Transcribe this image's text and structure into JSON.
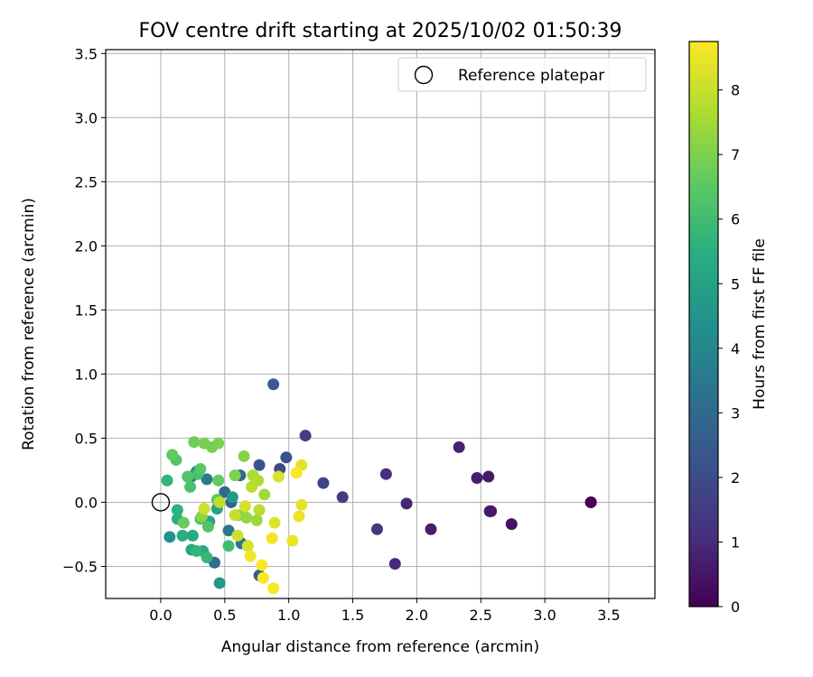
{
  "chart_data": {
    "type": "scatter",
    "title": "FOV centre drift starting at 2025/10/02 01:50:39",
    "xlabel": "Angular distance from reference (arcmin)",
    "ylabel": "Rotation from reference (arcmin)",
    "xlim": [
      -0.43,
      3.86
    ],
    "ylim": [
      -0.75,
      3.53
    ],
    "xticks": [
      0.0,
      0.5,
      1.0,
      1.5,
      2.0,
      2.5,
      3.0,
      3.5
    ],
    "xtick_labels": [
      "0.0",
      "0.5",
      "1.0",
      "1.5",
      "2.0",
      "2.5",
      "3.0",
      "3.5"
    ],
    "yticks": [
      -0.5,
      0.0,
      0.5,
      1.0,
      1.5,
      2.0,
      2.5,
      3.0,
      3.5
    ],
    "ytick_labels": [
      "−0.5",
      "0.0",
      "0.5",
      "1.0",
      "1.5",
      "2.0",
      "2.5",
      "3.0",
      "3.5"
    ],
    "grid": true,
    "legend": {
      "position": "top-right",
      "entries": [
        "Reference platepar"
      ]
    },
    "reference_point": {
      "x": 0.0,
      "y": 0.0
    },
    "colorbar": {
      "label": "Hours from first FF file",
      "colormap": "viridis",
      "range": [
        0,
        8.75
      ],
      "ticks": [
        0,
        1,
        2,
        3,
        4,
        5,
        6,
        7,
        8
      ],
      "tick_labels": [
        "0",
        "1",
        "2",
        "3",
        "4",
        "5",
        "6",
        "7",
        "8"
      ]
    },
    "points": [
      {
        "x": 3.36,
        "y": 0.0,
        "hours": 0.0
      },
      {
        "x": 3.36,
        "y": 0.0,
        "hours": 0.1
      },
      {
        "x": 2.74,
        "y": -0.17,
        "hours": 0.4
      },
      {
        "x": 2.58,
        "y": -0.07,
        "hours": 0.5
      },
      {
        "x": 2.57,
        "y": -0.07,
        "hours": 0.6
      },
      {
        "x": 2.56,
        "y": 0.2,
        "hours": 0.6
      },
      {
        "x": 2.47,
        "y": 0.19,
        "hours": 0.7
      },
      {
        "x": 2.33,
        "y": 0.43,
        "hours": 0.8
      },
      {
        "x": 2.11,
        "y": -0.21,
        "hours": 0.7
      },
      {
        "x": 1.92,
        "y": -0.01,
        "hours": 0.9
      },
      {
        "x": 1.83,
        "y": -0.48,
        "hours": 1.0
      },
      {
        "x": 1.76,
        "y": 0.22,
        "hours": 1.1
      },
      {
        "x": 1.69,
        "y": -0.21,
        "hours": 1.3
      },
      {
        "x": 1.42,
        "y": 0.04,
        "hours": 1.5
      },
      {
        "x": 1.27,
        "y": 0.15,
        "hours": 1.7
      },
      {
        "x": 1.13,
        "y": 0.52,
        "hours": 1.6
      },
      {
        "x": 0.98,
        "y": 0.35,
        "hours": 2.2
      },
      {
        "x": 0.93,
        "y": 0.26,
        "hours": 1.9
      },
      {
        "x": 0.88,
        "y": 0.92,
        "hours": 2.5
      },
      {
        "x": 0.77,
        "y": 0.29,
        "hours": 2.3
      },
      {
        "x": 0.77,
        "y": -0.57,
        "hours": 2.6
      },
      {
        "x": 0.62,
        "y": 0.21,
        "hours": 2.9
      },
      {
        "x": 0.55,
        "y": 0.0,
        "hours": 2.8
      },
      {
        "x": 0.5,
        "y": 0.08,
        "hours": 3.0
      },
      {
        "x": 0.42,
        "y": -0.47,
        "hours": 3.1
      },
      {
        "x": 0.63,
        "y": -0.32,
        "hours": 3.3
      },
      {
        "x": 0.53,
        "y": -0.22,
        "hours": 3.5
      },
      {
        "x": 0.36,
        "y": 0.18,
        "hours": 3.6
      },
      {
        "x": 0.28,
        "y": 0.24,
        "hours": 3.8
      },
      {
        "x": 0.24,
        "y": 0.2,
        "hours": 4.0
      },
      {
        "x": 0.07,
        "y": -0.27,
        "hours": 4.4
      },
      {
        "x": 0.46,
        "y": -0.63,
        "hours": 4.6
      },
      {
        "x": 0.56,
        "y": 0.04,
        "hours": 4.7
      },
      {
        "x": 0.44,
        "y": -0.05,
        "hours": 5.0
      },
      {
        "x": 0.38,
        "y": -0.15,
        "hours": 5.1
      },
      {
        "x": 0.33,
        "y": -0.38,
        "hours": 5.2
      },
      {
        "x": 0.24,
        "y": -0.37,
        "hours": 5.2
      },
      {
        "x": 0.25,
        "y": -0.26,
        "hours": 5.3
      },
      {
        "x": 0.17,
        "y": -0.26,
        "hours": 5.4
      },
      {
        "x": 0.13,
        "y": -0.13,
        "hours": 5.5
      },
      {
        "x": 0.13,
        "y": -0.06,
        "hours": 5.6
      },
      {
        "x": 0.05,
        "y": 0.17,
        "hours": 5.7
      },
      {
        "x": 0.28,
        "y": -0.38,
        "hours": 5.7
      },
      {
        "x": 0.36,
        "y": -0.43,
        "hours": 5.8
      },
      {
        "x": 0.53,
        "y": -0.34,
        "hours": 6.0
      },
      {
        "x": 0.29,
        "y": 0.22,
        "hours": 6.1
      },
      {
        "x": 0.23,
        "y": 0.12,
        "hours": 6.2
      },
      {
        "x": 0.31,
        "y": -0.13,
        "hours": 6.3
      },
      {
        "x": 0.37,
        "y": -0.19,
        "hours": 6.3
      },
      {
        "x": 0.12,
        "y": 0.33,
        "hours": 6.4
      },
      {
        "x": 0.21,
        "y": 0.2,
        "hours": 6.3
      },
      {
        "x": 0.31,
        "y": 0.26,
        "hours": 6.5
      },
      {
        "x": 0.44,
        "y": 0.02,
        "hours": 6.5
      },
      {
        "x": 0.45,
        "y": 0.17,
        "hours": 6.6
      },
      {
        "x": 0.18,
        "y": -0.16,
        "hours": 6.7
      },
      {
        "x": 0.09,
        "y": 0.37,
        "hours": 6.6
      },
      {
        "x": 0.26,
        "y": 0.47,
        "hours": 6.8
      },
      {
        "x": 0.34,
        "y": 0.46,
        "hours": 6.9
      },
      {
        "x": 0.4,
        "y": 0.43,
        "hours": 6.9
      },
      {
        "x": 0.45,
        "y": 0.46,
        "hours": 7.0
      },
      {
        "x": 0.58,
        "y": 0.21,
        "hours": 7.0
      },
      {
        "x": 0.65,
        "y": 0.36,
        "hours": 7.1
      },
      {
        "x": 0.32,
        "y": -0.11,
        "hours": 7.2
      },
      {
        "x": 0.61,
        "y": -0.1,
        "hours": 7.2
      },
      {
        "x": 0.67,
        "y": -0.12,
        "hours": 7.3
      },
      {
        "x": 0.75,
        "y": -0.14,
        "hours": 7.4
      },
      {
        "x": 0.81,
        "y": 0.06,
        "hours": 7.5
      },
      {
        "x": 0.72,
        "y": 0.21,
        "hours": 7.6
      },
      {
        "x": 0.76,
        "y": 0.17,
        "hours": 7.7
      },
      {
        "x": 0.71,
        "y": 0.12,
        "hours": 7.8
      },
      {
        "x": 0.77,
        "y": -0.06,
        "hours": 7.8
      },
      {
        "x": 0.46,
        "y": 0.0,
        "hours": 7.9
      },
      {
        "x": 0.58,
        "y": -0.1,
        "hours": 8.0
      },
      {
        "x": 0.34,
        "y": -0.05,
        "hours": 8.1
      },
      {
        "x": 0.6,
        "y": -0.26,
        "hours": 8.1
      },
      {
        "x": 0.66,
        "y": -0.03,
        "hours": 8.2
      },
      {
        "x": 0.68,
        "y": -0.34,
        "hours": 8.2
      },
      {
        "x": 0.89,
        "y": -0.16,
        "hours": 8.3
      },
      {
        "x": 0.92,
        "y": 0.2,
        "hours": 8.3
      },
      {
        "x": 1.1,
        "y": 0.29,
        "hours": 8.4
      },
      {
        "x": 1.1,
        "y": -0.02,
        "hours": 8.4
      },
      {
        "x": 1.08,
        "y": -0.11,
        "hours": 8.5
      },
      {
        "x": 1.03,
        "y": -0.3,
        "hours": 8.5
      },
      {
        "x": 0.87,
        "y": -0.28,
        "hours": 8.6
      },
      {
        "x": 0.7,
        "y": -0.42,
        "hours": 8.6
      },
      {
        "x": 0.79,
        "y": -0.49,
        "hours": 8.7
      },
      {
        "x": 0.8,
        "y": -0.59,
        "hours": 8.7
      },
      {
        "x": 0.88,
        "y": -0.67,
        "hours": 8.7
      },
      {
        "x": 1.06,
        "y": 0.23,
        "hours": 8.7
      }
    ]
  }
}
